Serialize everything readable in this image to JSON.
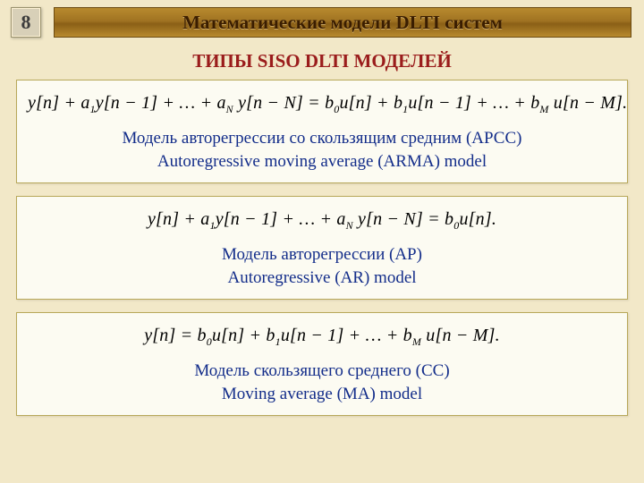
{
  "colors": {
    "page_bg": "#f2e8c8",
    "title_bar_gradient": [
      "#b88a2e",
      "#a07322",
      "#8a5f16",
      "#b88a2e"
    ],
    "title_bar_border": "#6b4a10",
    "pagebox_bg": "#d8d0b8",
    "pagebox_border": "#9a926f",
    "panel_bg": "#fcfbf2",
    "panel_border": "#b8a85a",
    "subtitle_text": "#9a1c1c",
    "caption_text": "#132d8a",
    "equation_text": "#000000"
  },
  "fonts": {
    "family": "Times New Roman",
    "title_size_pt": 16,
    "subtitle_size_pt": 16,
    "equation_size_pt": 15,
    "caption_size_pt": 14.5
  },
  "page_number": "8",
  "title": "Математические модели DLTI систем",
  "subtitle": "ТИПЫ SISO DLTI МОДЕЛЕЙ",
  "panels": [
    {
      "equation": "y[n] + a₁y[n − 1] + … + a_N y[n − N] = b₀u[n] + b₁u[n − 1] + … + b_M u[n − M].",
      "caption_ru": "Модель авторегрессии со скользящим средним (АРСС)",
      "caption_en": "Autoregressive moving average (ARMA) model"
    },
    {
      "equation": "y[n] + a₁y[n − 1] + … + a_N y[n − N] = b₀u[n].",
      "caption_ru": "Модель авторегрессии (АР)",
      "caption_en": "Autoregressive (AR) model"
    },
    {
      "equation": "y[n] = b₀u[n] + b₁u[n − 1] + … + b_M u[n − M].",
      "caption_ru": "Модель скользящего среднего (СС)",
      "caption_en": "Moving average (MA) model"
    }
  ]
}
